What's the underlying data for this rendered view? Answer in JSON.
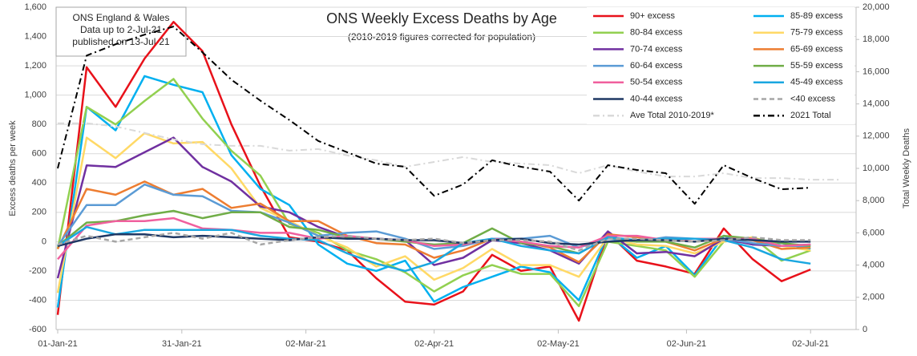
{
  "chart_data": {
    "type": "line",
    "title": "ONS Weekly Excess Deaths by Age",
    "subtitle": "(2010-2019  figures corrected for population)",
    "annotation": [
      "ONS England & Wales",
      "Data up to 2-Jul-21",
      "published on 13-Jul-21"
    ],
    "y_label": "Excess deaths per week",
    "y2_label": "Total  Weekly Deaths",
    "x": [
      "01-Jan-21",
      "08-Jan-21",
      "15-Jan-21",
      "22-Jan-21",
      "29-Jan-21",
      "05-Feb-21",
      "12-Feb-21",
      "19-Feb-21",
      "26-Feb-21",
      "05-Mar-21",
      "12-Mar-21",
      "19-Mar-21",
      "26-Mar-21",
      "02-Apr-21",
      "09-Apr-21",
      "16-Apr-21",
      "23-Apr-21",
      "30-Apr-21",
      "07-May-21",
      "14-May-21",
      "21-May-21",
      "28-May-21",
      "04-Jun-21",
      "11-Jun-21",
      "18-Jun-21",
      "25-Jun-21",
      "02-Jul-21",
      "09-Jul-21"
    ],
    "xlim": [
      "01-Jan-21",
      "13-Jul-21"
    ],
    "xticks": [
      "01-Jan-21",
      "31-Jan-21",
      "02-Mar-21",
      "02-Apr-21",
      "02-May-21",
      "02-Jun-21",
      "02-Jul-21"
    ],
    "ylim": [
      -600,
      1600
    ],
    "yticks": [
      -600,
      -400,
      -200,
      0,
      200,
      400,
      600,
      800,
      {
        "value": 1000,
        "label": "1,000"
      },
      {
        "value": 1200,
        "label": "1,200"
      },
      {
        "value": 1400,
        "label": "1,400"
      },
      {
        "value": 1600,
        "label": "1,600"
      }
    ],
    "y2lim": [
      0,
      20000
    ],
    "y2ticks": [
      0,
      {
        "value": 2000,
        "label": "2,000"
      },
      {
        "value": 4000,
        "label": "4,000"
      },
      {
        "value": 6000,
        "label": "6,000"
      },
      {
        "value": 8000,
        "label": "8,000"
      },
      {
        "value": 10000,
        "label": "10,000"
      },
      {
        "value": 12000,
        "label": "12,000"
      },
      {
        "value": 14000,
        "label": "14,000"
      },
      {
        "value": 16000,
        "label": "16,000"
      },
      {
        "value": 18000,
        "label": "18,000"
      },
      {
        "value": 20000,
        "label": "20,000"
      }
    ],
    "grid": true,
    "legend": "top-right",
    "series": [
      {
        "name": "90+ excess",
        "color": "#e8111a",
        "style": "solid",
        "values": [
          -500,
          1190,
          920,
          1250,
          1500,
          1300,
          800,
          380,
          30,
          0,
          -60,
          -250,
          -410,
          -430,
          -340,
          -90,
          -200,
          -170,
          -540,
          60,
          -130,
          -170,
          -220,
          90,
          -120,
          -270,
          -190,
          null
        ]
      },
      {
        "name": "85-89 excess",
        "color": "#00b0f0",
        "style": "solid",
        "values": [
          -450,
          920,
          760,
          1130,
          1070,
          1020,
          590,
          360,
          250,
          -20,
          -150,
          -200,
          -130,
          -410,
          -310,
          -240,
          -170,
          -210,
          -400,
          50,
          -110,
          -30,
          -230,
          40,
          -20,
          -10,
          -50,
          null
        ]
      },
      {
        "name": "80-84 excess",
        "color": "#92d050",
        "style": "solid",
        "values": [
          -50,
          920,
          800,
          960,
          1110,
          840,
          620,
          450,
          120,
          60,
          -60,
          -120,
          -210,
          -340,
          -230,
          -160,
          -220,
          -220,
          -440,
          0,
          -30,
          -60,
          -240,
          0,
          30,
          -130,
          -60,
          null
        ]
      },
      {
        "name": "75-79 excess",
        "color": "#ffd966",
        "style": "solid",
        "values": [
          -350,
          710,
          570,
          740,
          670,
          680,
          500,
          230,
          140,
          40,
          -40,
          -170,
          -100,
          -260,
          -180,
          -50,
          -160,
          -160,
          -240,
          30,
          -20,
          -30,
          -80,
          0,
          30,
          -30,
          -60,
          null
        ]
      },
      {
        "name": "70-74 excess",
        "color": "#7030a0",
        "style": "solid",
        "values": [
          -250,
          520,
          510,
          610,
          710,
          510,
          410,
          240,
          200,
          100,
          30,
          20,
          10,
          -160,
          -110,
          10,
          -10,
          -60,
          -150,
          70,
          -80,
          -70,
          -100,
          20,
          -20,
          -30,
          -20,
          null
        ]
      },
      {
        "name": "65-69 excess",
        "color": "#ed7d31",
        "style": "solid",
        "values": [
          -50,
          360,
          320,
          410,
          320,
          360,
          230,
          260,
          140,
          140,
          40,
          -10,
          -20,
          -110,
          -60,
          20,
          0,
          -40,
          -140,
          50,
          30,
          0,
          -60,
          20,
          10,
          -50,
          -40,
          null
        ]
      },
      {
        "name": "60-64 excess",
        "color": "#5b9bd5",
        "style": "solid",
        "values": [
          -30,
          250,
          250,
          390,
          320,
          310,
          210,
          200,
          130,
          40,
          60,
          70,
          20,
          -50,
          -30,
          20,
          20,
          40,
          -40,
          20,
          0,
          30,
          20,
          20,
          -10,
          -30,
          -30,
          null
        ]
      },
      {
        "name": "55-59 excess",
        "color": "#70ad47",
        "style": "solid",
        "values": [
          -30,
          130,
          140,
          180,
          210,
          160,
          200,
          200,
          100,
          80,
          30,
          20,
          0,
          -20,
          -10,
          90,
          -10,
          -30,
          -80,
          30,
          0,
          0,
          -40,
          40,
          20,
          -10,
          -30,
          null
        ]
      },
      {
        "name": "50-54 excess",
        "color": "#f0609e",
        "style": "solid",
        "values": [
          -120,
          110,
          140,
          140,
          160,
          90,
          80,
          60,
          60,
          20,
          40,
          20,
          10,
          -30,
          -20,
          20,
          0,
          -30,
          -40,
          40,
          40,
          10,
          20,
          20,
          20,
          -30,
          -20,
          null
        ]
      },
      {
        "name": "45-49 excess",
        "color": "#1aa7e0",
        "style": "solid",
        "values": [
          -30,
          100,
          50,
          80,
          80,
          80,
          80,
          40,
          20,
          10,
          -80,
          -150,
          -200,
          -140,
          -10,
          20,
          -30,
          -60,
          -80,
          30,
          10,
          20,
          20,
          10,
          -40,
          -120,
          -150,
          null
        ]
      },
      {
        "name": "40-44 excess",
        "color": "#1f3864",
        "style": "solid",
        "values": [
          -30,
          20,
          50,
          50,
          30,
          40,
          30,
          20,
          10,
          30,
          20,
          20,
          10,
          10,
          -10,
          10,
          20,
          -10,
          -20,
          0,
          10,
          10,
          0,
          20,
          10,
          0,
          0,
          null
        ]
      },
      {
        "name": "<40 excess",
        "color": "#a6a6a6",
        "style": "dashed",
        "values": [
          -20,
          40,
          0,
          30,
          60,
          20,
          60,
          -20,
          10,
          30,
          40,
          20,
          10,
          20,
          -10,
          10,
          10,
          0,
          -60,
          20,
          20,
          10,
          0,
          10,
          30,
          10,
          10,
          null
        ]
      },
      {
        "name": "Ave Total 2010-2019*",
        "color": "#d9d9d9",
        "style": "dashdot",
        "axis": "y2",
        "values": [
          12800,
          12800,
          12600,
          12200,
          11800,
          11500,
          11400,
          11400,
          11100,
          11200,
          10800,
          10500,
          10100,
          10400,
          10700,
          10400,
          10300,
          10200,
          9700,
          10200,
          9800,
          9500,
          9500,
          9700,
          9400,
          9400,
          9300,
          9300
        ]
      },
      {
        "name": "2021 Total",
        "color": "#000000",
        "style": "dashdot",
        "axis": "y2",
        "values": [
          10000,
          17000,
          17700,
          18300,
          18800,
          17200,
          15500,
          14200,
          13000,
          11700,
          11000,
          10300,
          10100,
          8300,
          9000,
          10500,
          10100,
          9800,
          8000,
          10200,
          9900,
          9700,
          7800,
          10200,
          9400,
          8700,
          8800,
          null
        ]
      }
    ]
  }
}
